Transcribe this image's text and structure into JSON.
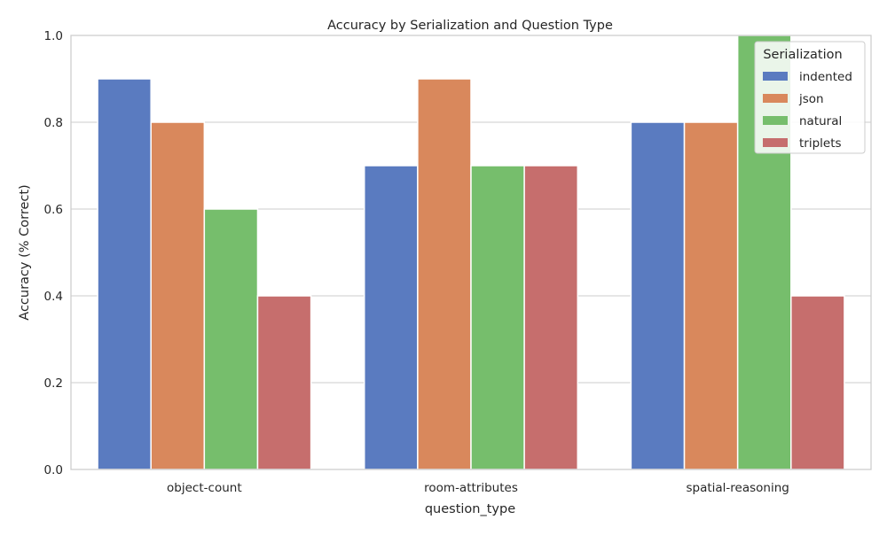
{
  "chart_data": {
    "type": "bar",
    "title": "Accuracy by Serialization and Question Type",
    "xlabel": "question_type",
    "ylabel": "Accuracy (% Correct)",
    "ylim": [
      0,
      1.0
    ],
    "yticks": [
      0.0,
      0.2,
      0.4,
      0.6,
      0.8,
      1.0
    ],
    "ytick_labels": [
      "0.0",
      "0.2",
      "0.4",
      "0.6",
      "0.8",
      "1.0"
    ],
    "grid": true,
    "categories": [
      "object-count",
      "room-attributes",
      "spatial-reasoning"
    ],
    "legend": {
      "title": "Serialization",
      "placement": "top-right"
    },
    "series": [
      {
        "name": "indented",
        "color": "#5a7bc0",
        "values": [
          0.9,
          0.7,
          0.8
        ]
      },
      {
        "name": "json",
        "color": "#d9885c",
        "values": [
          0.8,
          0.9,
          0.8
        ]
      },
      {
        "name": "natural",
        "color": "#76be6c",
        "values": [
          0.6,
          0.7,
          1.0
        ]
      },
      {
        "name": "triplets",
        "color": "#c66e6d",
        "values": [
          0.4,
          0.7,
          0.4
        ]
      }
    ]
  }
}
